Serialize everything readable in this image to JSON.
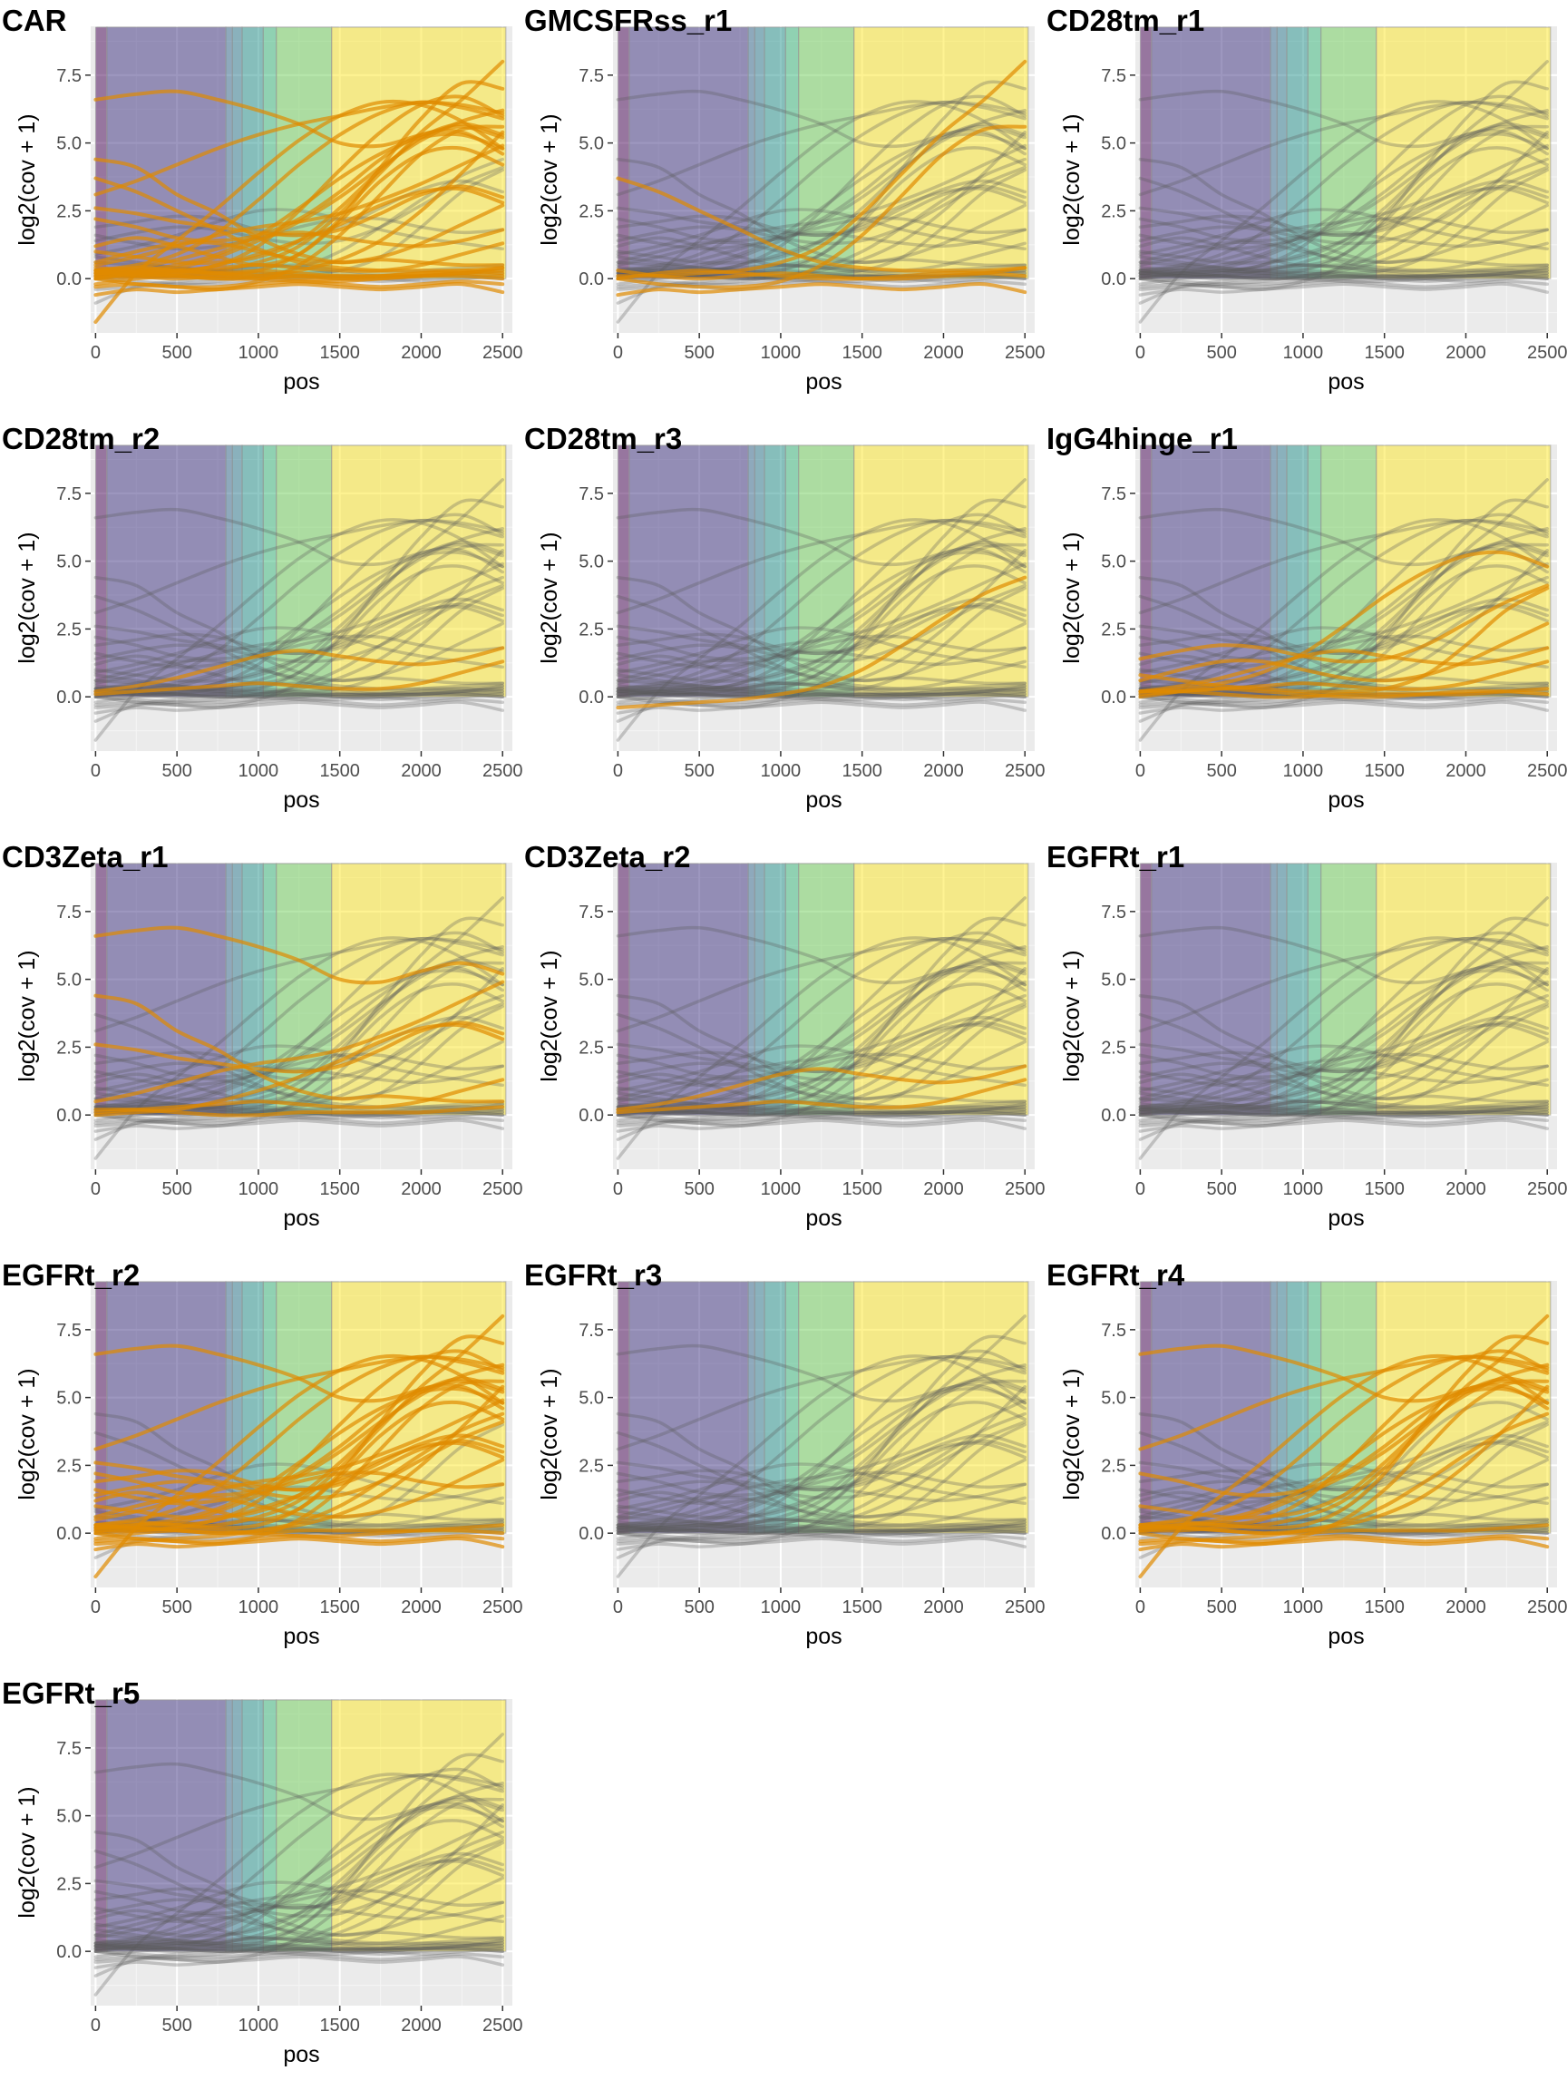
{
  "chart_data": {
    "type": "line",
    "layout": "facet grid, 3 columns",
    "xlabel": "pos",
    "ylabel": "log2(cov + 1)",
    "xlim": [
      -30,
      2560
    ],
    "ylim": [
      -2,
      9.3
    ],
    "x_ticks": [
      0,
      500,
      1000,
      1500,
      2000,
      2500
    ],
    "y_ticks": [
      0.0,
      2.5,
      5.0,
      7.5
    ],
    "y_tick_labels": [
      "0.0",
      "2.5",
      "5.0",
      "7.5"
    ],
    "grid": true,
    "background": "#ebebeb",
    "regions": [
      {
        "start": 0,
        "end": 70,
        "color": "#440154"
      },
      {
        "start": 70,
        "end": 800,
        "color": "#3b2f7f"
      },
      {
        "start": 800,
        "end": 840,
        "color": "#31688e"
      },
      {
        "start": 840,
        "end": 900,
        "color": "#2a788e"
      },
      {
        "start": 900,
        "end": 1030,
        "color": "#21918c"
      },
      {
        "start": 1030,
        "end": 1110,
        "color": "#35b779"
      },
      {
        "start": 1110,
        "end": 1450,
        "color": "#6ece58"
      },
      {
        "start": 1450,
        "end": 2520,
        "color": "#fde725"
      }
    ],
    "series_colors": {
      "other": "#595959",
      "highlighted": "#e08a00"
    },
    "x": [
      0,
      250,
      500,
      750,
      1000,
      1250,
      1500,
      1750,
      2000,
      2250,
      2500
    ],
    "series": [
      {
        "values": [
          6.6,
          6.8,
          6.9,
          6.6,
          6.2,
          5.7,
          5.0,
          4.9,
          5.3,
          5.6,
          5.2
        ]
      },
      {
        "values": [
          4.4,
          4.1,
          3.1,
          2.4,
          1.5,
          0.9,
          0.6,
          0.7,
          0.6,
          0.5,
          0.5
        ]
      },
      {
        "values": [
          3.1,
          3.6,
          4.2,
          4.8,
          5.3,
          5.7,
          6.0,
          6.3,
          6.5,
          6.4,
          6.1
        ]
      },
      {
        "values": [
          0.3,
          0.5,
          0.9,
          1.7,
          2.9,
          4.2,
          5.3,
          6.1,
          6.5,
          6.3,
          5.9
        ]
      },
      {
        "values": [
          0.1,
          0.2,
          0.3,
          0.5,
          1.2,
          2.5,
          4.0,
          5.4,
          6.4,
          6.7,
          6.0
        ]
      },
      {
        "values": [
          0.2,
          0.3,
          0.4,
          0.8,
          1.4,
          2.1,
          3.0,
          4.1,
          5.1,
          5.8,
          6.2
        ]
      },
      {
        "values": [
          0.1,
          0.1,
          0.2,
          0.3,
          0.6,
          1.2,
          2.4,
          3.9,
          5.4,
          6.6,
          8.0
        ]
      },
      {
        "values": [
          0.5,
          0.8,
          1.2,
          1.6,
          1.9,
          2.1,
          2.4,
          2.9,
          3.5,
          4.2,
          4.9
        ]
      },
      {
        "values": [
          1.9,
          2.1,
          2.3,
          2.2,
          1.8,
          1.6,
          1.9,
          2.6,
          3.3,
          3.6,
          3.2
        ]
      },
      {
        "values": [
          -1.6,
          0.2,
          1.4,
          2.6,
          3.9,
          5.1,
          6.0,
          6.5,
          6.4,
          5.8,
          4.8
        ]
      },
      {
        "values": [
          1.2,
          1.5,
          1.2,
          0.8,
          0.5,
          0.9,
          2.1,
          3.6,
          4.6,
          4.8,
          4.2
        ]
      },
      {
        "values": [
          0.9,
          1.2,
          1.6,
          2.1,
          2.5,
          2.5,
          2.2,
          1.8,
          1.5,
          1.3,
          1.1
        ]
      },
      {
        "values": [
          0.3,
          0.4,
          0.3,
          0.2,
          0.3,
          0.9,
          2.2,
          4.1,
          5.9,
          7.2,
          7.0
        ]
      },
      {
        "values": [
          1.6,
          1.3,
          1.1,
          1.2,
          1.5,
          1.9,
          2.2,
          2.2,
          1.9,
          1.7,
          1.8
        ]
      },
      {
        "values": [
          0.0,
          -0.2,
          -0.3,
          -0.3,
          -0.1,
          0.5,
          1.6,
          3.1,
          4.6,
          5.5,
          5.6
        ]
      },
      {
        "values": [
          0.8,
          0.6,
          0.4,
          0.3,
          0.2,
          0.2,
          0.3,
          0.8,
          1.9,
          3.2,
          4.0
        ]
      },
      {
        "values": [
          2.6,
          2.4,
          2.1,
          1.9,
          1.7,
          1.6,
          1.8,
          2.4,
          3.1,
          3.4,
          3.0
        ]
      },
      {
        "values": [
          0.0,
          0.1,
          0.2,
          0.5,
          0.9,
          1.4,
          2.0,
          2.7,
          3.2,
          3.3,
          2.8
        ]
      },
      {
        "values": [
          0.2,
          0.4,
          0.7,
          1.1,
          1.5,
          1.7,
          1.5,
          1.3,
          1.2,
          1.4,
          1.8
        ]
      },
      {
        "values": [
          1.0,
          0.8,
          0.6,
          0.6,
          0.8,
          1.4,
          2.6,
          4.0,
          5.2,
          5.7,
          5.3
        ]
      },
      {
        "values": [
          -0.4,
          -0.3,
          -0.2,
          -0.1,
          0.1,
          0.4,
          1.0,
          1.9,
          2.9,
          3.8,
          4.4
        ]
      },
      {
        "values": [
          0.6,
          1.0,
          1.3,
          1.3,
          1.0,
          0.7,
          0.6,
          0.8,
          1.3,
          2.0,
          2.7
        ]
      },
      {
        "values": [
          3.7,
          3.2,
          2.5,
          1.8,
          1.1,
          0.6,
          0.4,
          0.3,
          0.3,
          0.3,
          0.4
        ]
      },
      {
        "values": [
          0.2,
          0.3,
          0.5,
          0.9,
          1.6,
          2.6,
          3.7,
          4.6,
          5.2,
          5.3,
          4.8
        ]
      },
      {
        "values": [
          0.3,
          0.2,
          0.1,
          0.0,
          0.1,
          0.3,
          0.7,
          1.4,
          2.5,
          3.9,
          5.4
        ]
      },
      {
        "values": [
          1.4,
          1.7,
          1.9,
          1.8,
          1.5,
          1.3,
          1.4,
          1.9,
          2.7,
          3.5,
          4.1
        ]
      },
      {
        "values": [
          0.1,
          0.2,
          0.3,
          0.4,
          0.5,
          0.4,
          0.3,
          0.3,
          0.5,
          0.9,
          1.3
        ]
      },
      {
        "values": [
          2.2,
          1.9,
          1.5,
          1.4,
          1.6,
          2.2,
          3.2,
          4.4,
          5.3,
          5.4,
          4.6
        ]
      },
      {
        "values": [
          0.1,
          0.1,
          0.1,
          0.1,
          0.1,
          0.1,
          0.1,
          0.1,
          0.1,
          0.1,
          0.2
        ]
      },
      {
        "values": [
          0.2,
          0.2,
          0.1,
          0.0,
          0.0,
          0.1,
          0.1,
          0.1,
          0.1,
          0.2,
          0.3
        ]
      },
      {
        "values": [
          -0.2,
          0.0,
          0.1,
          0.1,
          0.0,
          -0.1,
          -0.1,
          0.0,
          0.1,
          0.1,
          0.0
        ]
      },
      {
        "values": [
          0.4,
          0.3,
          0.2,
          0.2,
          0.3,
          0.2,
          0.1,
          0.1,
          0.2,
          0.3,
          0.2
        ]
      },
      {
        "values": [
          -0.3,
          -0.2,
          -0.3,
          -0.4,
          -0.2,
          -0.1,
          -0.2,
          -0.3,
          -0.2,
          -0.1,
          -0.2
        ]
      },
      {
        "values": [
          0.0,
          0.2,
          0.3,
          0.2,
          0.1,
          0.0,
          0.0,
          0.1,
          0.2,
          0.2,
          0.1
        ]
      },
      {
        "values": [
          -0.6,
          -0.4,
          -0.5,
          -0.4,
          -0.3,
          -0.2,
          -0.3,
          -0.4,
          -0.3,
          -0.2,
          -0.5
        ]
      },
      {
        "values": [
          0.3,
          0.1,
          0.0,
          0.1,
          0.2,
          0.1,
          0.0,
          0.0,
          0.1,
          0.2,
          0.4
        ]
      },
      {
        "values": [
          -0.9,
          -0.3,
          -0.1,
          0.0,
          0.0,
          0.1,
          0.0,
          -0.1,
          0.0,
          0.1,
          0.0
        ]
      },
      {
        "values": [
          0.6,
          0.5,
          0.4,
          0.3,
          0.4,
          0.5,
          0.3,
          0.2,
          0.3,
          0.4,
          0.5
        ]
      },
      {
        "values": [
          0.0,
          -0.1,
          -0.2,
          -0.2,
          -0.1,
          0.0,
          0.1,
          0.0,
          -0.1,
          0.0,
          0.1
        ]
      },
      {
        "values": [
          0.2,
          0.1,
          0.1,
          0.3,
          0.5,
          0.4,
          0.2,
          0.1,
          0.1,
          0.2,
          0.3
        ]
      }
    ],
    "panels": [
      {
        "title": "CAR",
        "highlight": [
          0,
          1,
          2,
          3,
          4,
          5,
          6,
          7,
          9,
          10,
          12,
          14,
          16,
          17,
          18,
          19,
          21,
          22,
          23,
          24,
          26,
          27,
          29,
          30,
          31,
          32,
          33,
          34,
          35
        ]
      },
      {
        "title": "GMCSFRss_r1",
        "highlight": [
          6,
          14,
          22,
          33,
          34,
          35
        ]
      },
      {
        "title": "CD28tm_r1",
        "highlight": []
      },
      {
        "title": "CD28tm_r2",
        "highlight": [
          18,
          26
        ]
      },
      {
        "title": "CD28tm_r3",
        "highlight": [
          20
        ]
      },
      {
        "title": "IgG4hinge_r1",
        "highlight": [
          15,
          18,
          21,
          23,
          25,
          26,
          29,
          33
        ]
      },
      {
        "title": "CD3Zeta_r1",
        "highlight": [
          0,
          1,
          7,
          16,
          17,
          26,
          29
        ]
      },
      {
        "title": "CD3Zeta_r2",
        "highlight": [
          18,
          26
        ]
      },
      {
        "title": "EGFRt_r1",
        "highlight": []
      },
      {
        "title": "EGFRt_r2",
        "highlight": [
          0,
          2,
          3,
          4,
          5,
          6,
          7,
          8,
          9,
          10,
          12,
          13,
          14,
          16,
          17,
          19,
          20,
          21,
          23,
          24,
          25,
          27,
          29,
          30,
          32,
          34
        ]
      },
      {
        "title": "EGFRt_r3",
        "highlight": []
      },
      {
        "title": "EGFRt_r4",
        "highlight": [
          0,
          2,
          3,
          4,
          5,
          6,
          9,
          12,
          14,
          19,
          20,
          23,
          24,
          27,
          29,
          32,
          34
        ]
      },
      {
        "title": "EGFRt_r5",
        "highlight": []
      }
    ]
  }
}
